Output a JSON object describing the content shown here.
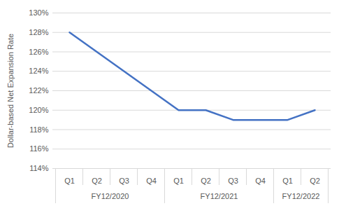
{
  "chart_data": {
    "type": "line",
    "y_label": "Dollar-based Net Expansion Rate",
    "categories": [
      "Q1",
      "Q2",
      "Q3",
      "Q4",
      "Q1",
      "Q2",
      "Q3",
      "Q4",
      "Q1",
      "Q2"
    ],
    "category_groups": [
      {
        "label": "FY12/2020",
        "size": 4
      },
      {
        "label": "FY12/2021",
        "size": 4
      },
      {
        "label": "FY12/2022",
        "size": 2
      }
    ],
    "values": [
      128,
      126,
      124,
      122,
      120,
      120,
      119,
      119,
      119,
      120
    ],
    "color": "#4472c4",
    "ylim": [
      114,
      130
    ],
    "yticks": [
      {
        "value": 114,
        "label": "114%"
      },
      {
        "value": 116,
        "label": "116%"
      },
      {
        "value": 118,
        "label": "118%"
      },
      {
        "value": 120,
        "label": "120%"
      },
      {
        "value": 122,
        "label": "122%"
      },
      {
        "value": 124,
        "label": "124%"
      },
      {
        "value": 126,
        "label": "126%"
      },
      {
        "value": 128,
        "label": "128%"
      },
      {
        "value": 130,
        "label": "130%"
      }
    ],
    "grid": true
  }
}
